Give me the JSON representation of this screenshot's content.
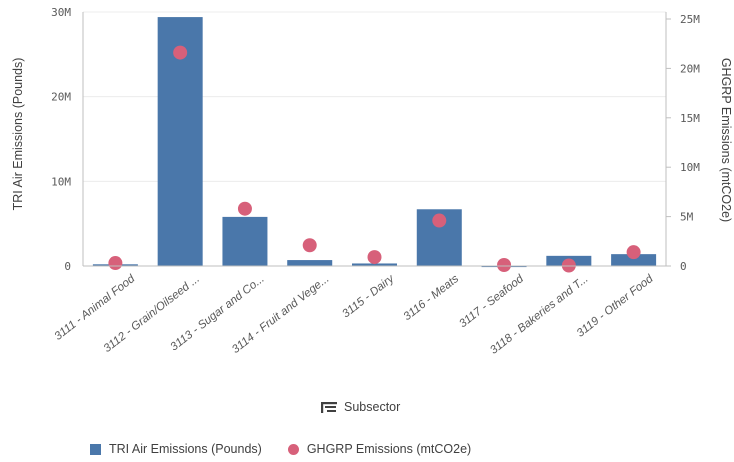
{
  "chart_data": {
    "type": "bar",
    "categories": [
      "3111 - Animal Food",
      "3112 - Grain/Oilseed ...",
      "3113 - Sugar and Co...",
      "3114 - Fruit and Vege...",
      "3115 - Dairy",
      "3116 - Meats",
      "3117 - Seafood",
      "3118 - Bakeries and T...",
      "3119 - Other Food"
    ],
    "series": [
      {
        "name": "TRI Air Emissions (Pounds)",
        "kind": "bar",
        "axis": "left",
        "color": "#4a77aa",
        "values": [
          200000,
          29400000,
          5800000,
          700000,
          300000,
          6700000,
          50000,
          1200000,
          1400000
        ]
      },
      {
        "name": "GHGRP Emissions (mtCO2e)",
        "kind": "dot",
        "axis": "right",
        "color": "#d7607a",
        "values": [
          300000,
          21600000,
          5800000,
          2100000,
          900000,
          4600000,
          100000,
          50000,
          1400000
        ]
      }
    ],
    "ylabel_left": "TRI Air Emissions (Pounds)",
    "ylabel_right": "GHGRP Emissions (mtCO2e)",
    "xlabel": "Subsector",
    "ylim_left": [
      0,
      30000000
    ],
    "ylim_right": [
      0,
      25000000
    ],
    "yticks_left": [
      "0",
      "10M",
      "20M",
      "30M"
    ],
    "yticks_right": [
      "0",
      "5M",
      "10M",
      "15M",
      "20M",
      "25M"
    ],
    "legend_position": "bottom-left"
  },
  "legend": {
    "bar_label": "TRI Air Emissions (Pounds)",
    "dot_label": "GHGRP Emissions (mtCO2e)"
  },
  "icons": {
    "xaxis_field": "dimension-icon"
  }
}
